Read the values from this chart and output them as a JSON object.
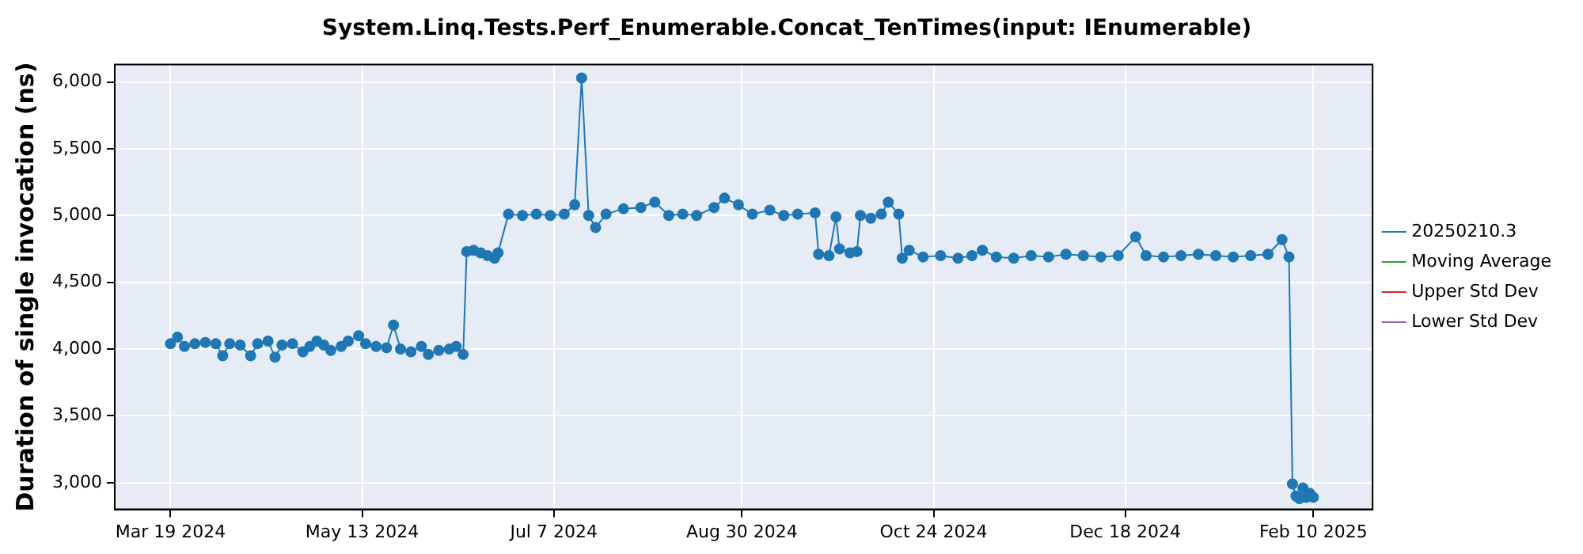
{
  "chart_data": {
    "type": "line",
    "title": "System.Linq.Tests.Perf_Enumerable.Concat_TenTimes(input: IEnumerable)",
    "ylabel": "Duration of single invocation (ns)",
    "x": [
      "2024-03-19",
      "2024-03-21",
      "2024-03-23",
      "2024-03-26",
      "2024-03-29",
      "2024-04-01",
      "2024-04-03",
      "2024-04-05",
      "2024-04-08",
      "2024-04-11",
      "2024-04-13",
      "2024-04-16",
      "2024-04-18",
      "2024-04-20",
      "2024-04-23",
      "2024-04-26",
      "2024-04-28",
      "2024-04-30",
      "2024-05-02",
      "2024-05-04",
      "2024-05-07",
      "2024-05-09",
      "2024-05-12",
      "2024-05-14",
      "2024-05-17",
      "2024-05-20",
      "2024-05-22",
      "2024-05-24",
      "2024-05-27",
      "2024-05-30",
      "2024-06-01",
      "2024-06-04",
      "2024-06-07",
      "2024-06-09",
      "2024-06-11",
      "2024-06-12",
      "2024-06-14",
      "2024-06-16",
      "2024-06-18",
      "2024-06-20",
      "2024-06-21",
      "2024-06-24",
      "2024-06-28",
      "2024-07-02",
      "2024-07-06",
      "2024-07-10",
      "2024-07-13",
      "2024-07-15",
      "2024-07-17",
      "2024-07-19",
      "2024-07-22",
      "2024-07-27",
      "2024-08-01",
      "2024-08-05",
      "2024-08-09",
      "2024-08-13",
      "2024-08-17",
      "2024-08-22",
      "2024-08-25",
      "2024-08-29",
      "2024-09-02",
      "2024-09-07",
      "2024-09-11",
      "2024-09-15",
      "2024-09-20",
      "2024-09-21",
      "2024-09-24",
      "2024-09-26",
      "2024-09-27",
      "2024-09-30",
      "2024-10-02",
      "2024-10-03",
      "2024-10-06",
      "2024-10-09",
      "2024-10-11",
      "2024-10-14",
      "2024-10-15",
      "2024-10-17",
      "2024-10-21",
      "2024-10-26",
      "2024-10-31",
      "2024-11-04",
      "2024-11-07",
      "2024-11-11",
      "2024-11-16",
      "2024-11-21",
      "2024-11-26",
      "2024-12-01",
      "2024-12-06",
      "2024-12-11",
      "2024-12-16",
      "2024-12-21",
      "2024-12-24",
      "2024-12-29",
      "2025-01-03",
      "2025-01-08",
      "2025-01-13",
      "2025-01-18",
      "2025-01-23",
      "2025-01-28",
      "2025-02-01",
      "2025-02-03",
      "2025-02-04",
      "2025-02-05",
      "2025-02-06",
      "2025-02-07",
      "2025-02-08",
      "2025-02-09",
      "2025-02-10"
    ],
    "xlim": [
      "2024-03-03",
      "2025-02-27"
    ],
    "xticks": [
      {
        "value": "2024-03-19",
        "label": "Mar 19 2024"
      },
      {
        "value": "2024-05-13",
        "label": "May 13 2024"
      },
      {
        "value": "2024-07-07",
        "label": "Jul 7 2024"
      },
      {
        "value": "2024-08-30",
        "label": "Aug 30 2024"
      },
      {
        "value": "2024-10-24",
        "label": "Oct 24 2024"
      },
      {
        "value": "2024-12-18",
        "label": "Dec 18 2024"
      },
      {
        "value": "2025-02-10",
        "label": "Feb 10 2025"
      }
    ],
    "ylim": [
      2800,
      6130
    ],
    "yticks": [
      {
        "value": 3000,
        "label": "3,000"
      },
      {
        "value": 3500,
        "label": "3,500"
      },
      {
        "value": 4000,
        "label": "4,000"
      },
      {
        "value": 4500,
        "label": "4,500"
      },
      {
        "value": 5000,
        "label": "5,000"
      },
      {
        "value": 5500,
        "label": "5,500"
      },
      {
        "value": 6000,
        "label": "6,000"
      }
    ],
    "series": [
      {
        "name": "20250210.3",
        "color": "#1f77b4",
        "values": [
          4040,
          4090,
          4020,
          4040,
          4050,
          4040,
          3950,
          4040,
          4030,
          3950,
          4040,
          4060,
          3940,
          4030,
          4040,
          3980,
          4020,
          4060,
          4030,
          3990,
          4020,
          4060,
          4100,
          4040,
          4020,
          4010,
          4180,
          4000,
          3980,
          4020,
          3960,
          3990,
          4000,
          4020,
          3960,
          4730,
          4740,
          4720,
          4700,
          4680,
          4720,
          5010,
          5000,
          5010,
          5000,
          5010,
          5080,
          6030,
          5000,
          4910,
          5010,
          5050,
          5060,
          5100,
          5000,
          5010,
          5000,
          5060,
          5130,
          5080,
          5010,
          5040,
          5000,
          5010,
          5020,
          4710,
          4700,
          4990,
          4750,
          4720,
          4730,
          5000,
          4980,
          5010,
          5100,
          5010,
          4680,
          4740,
          4690,
          4700,
          4680,
          4700,
          4740,
          4690,
          4680,
          4700,
          4690,
          4710,
          4700,
          4690,
          4700,
          4840,
          4700,
          4690,
          4700,
          4710,
          4700,
          4690,
          4700,
          4710,
          4820,
          4690,
          2990,
          2900,
          2880,
          2960,
          2890,
          2920,
          2890
        ]
      },
      {
        "name": "Moving Average",
        "color": "#2ca02c",
        "values": [
          null,
          null,
          null,
          null,
          null,
          null,
          null,
          null,
          null,
          null,
          null,
          null,
          null,
          null,
          null,
          null,
          null,
          null,
          null,
          null,
          null,
          null,
          null,
          null,
          null,
          null,
          null,
          null,
          null,
          null,
          null,
          null,
          null,
          null,
          null,
          null,
          null,
          null,
          null,
          null,
          null,
          null,
          null,
          null,
          null,
          null,
          null,
          null,
          null,
          null,
          null,
          null,
          null,
          null,
          null,
          null,
          null,
          null,
          null,
          null,
          null,
          null,
          null,
          null,
          null,
          null,
          null,
          null,
          null,
          null,
          null,
          null,
          null,
          null,
          null,
          null,
          null,
          null,
          null,
          null,
          null,
          null,
          null,
          null,
          null,
          null,
          null,
          null,
          null,
          null,
          null,
          null,
          null,
          null,
          null,
          null,
          null,
          null,
          null,
          null,
          null,
          null,
          null,
          null,
          null,
          null,
          null,
          null,
          null
        ]
      },
      {
        "name": "Upper Std Dev",
        "color": "#d62728",
        "values": [
          null,
          null,
          null,
          null,
          null,
          null,
          null,
          null,
          null,
          null,
          null,
          null,
          null,
          null,
          null,
          null,
          null,
          null,
          null,
          null,
          null,
          null,
          null,
          null,
          null,
          null,
          null,
          null,
          null,
          null,
          null,
          null,
          null,
          null,
          null,
          null,
          null,
          null,
          null,
          null,
          null,
          null,
          null,
          null,
          null,
          null,
          null,
          null,
          null,
          null,
          null,
          null,
          null,
          null,
          null,
          null,
          null,
          null,
          null,
          null,
          null,
          null,
          null,
          null,
          null,
          null,
          null,
          null,
          null,
          null,
          null,
          null,
          null,
          null,
          null,
          null,
          null,
          null,
          null,
          null,
          null,
          null,
          null,
          null,
          null,
          null,
          null,
          null,
          null,
          null,
          null,
          null,
          null,
          null,
          null,
          null,
          null,
          null,
          null,
          null,
          null,
          null,
          null,
          null,
          null,
          null,
          null,
          null,
          null
        ]
      },
      {
        "name": "Lower Std Dev",
        "color": "#9467bd",
        "values": [
          null,
          null,
          null,
          null,
          null,
          null,
          null,
          null,
          null,
          null,
          null,
          null,
          null,
          null,
          null,
          null,
          null,
          null,
          null,
          null,
          null,
          null,
          null,
          null,
          null,
          null,
          null,
          null,
          null,
          null,
          null,
          null,
          null,
          null,
          null,
          null,
          null,
          null,
          null,
          null,
          null,
          null,
          null,
          null,
          null,
          null,
          null,
          null,
          null,
          null,
          null,
          null,
          null,
          null,
          null,
          null,
          null,
          null,
          null,
          null,
          null,
          null,
          null,
          null,
          null,
          null,
          null,
          null,
          null,
          null,
          null,
          null,
          null,
          null,
          null,
          null,
          null,
          null,
          null,
          null,
          null,
          null,
          null,
          null,
          null,
          null,
          null,
          null,
          null,
          null,
          null,
          null,
          null,
          null,
          null,
          null,
          null,
          null,
          null,
          null,
          null,
          null,
          null,
          null,
          null,
          null,
          null,
          null,
          null
        ]
      }
    ],
    "grid": true,
    "legend": "right",
    "marker": "circle",
    "line_style": "solid"
  }
}
